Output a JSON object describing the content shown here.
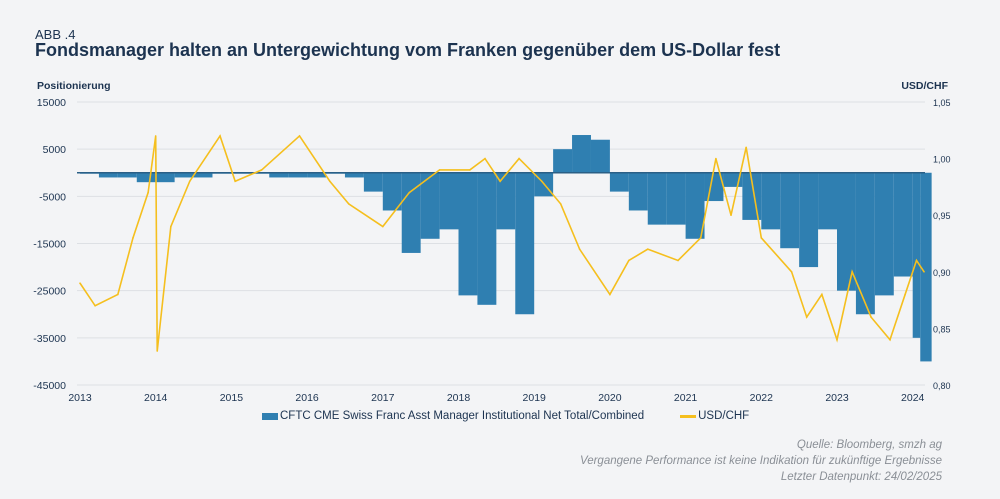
{
  "header": {
    "label": "ABB .4",
    "title": "Fondsmanager halten an Untergewichtung vom Franken gegenüber dem US-Dollar fest"
  },
  "chart_data": {
    "type": "bar+line",
    "ylabel_left": "Positionierung",
    "ylabel_right": "USD/CHF",
    "ylim_left": [
      -45000,
      15000
    ],
    "ylim_right": [
      0.8,
      1.05
    ],
    "xlim": [
      2013,
      2024.2
    ],
    "yticks_left": [
      "15000",
      "5000",
      "-5000",
      "-15000",
      "-25000",
      "-35000",
      "-45000"
    ],
    "yticks_left_values": [
      15000,
      5000,
      -5000,
      -15000,
      -25000,
      -35000,
      -45000
    ],
    "yticks_right": [
      "1,05",
      "1,00",
      "0,95",
      "0,90",
      "0,85",
      "0,80"
    ],
    "yticks_right_values": [
      1.05,
      1.0,
      0.95,
      0.9,
      0.85,
      0.8
    ],
    "xticks": [
      "2013",
      "2014",
      "2015",
      "2016",
      "2017",
      "2018",
      "2019",
      "2020",
      "2021",
      "2022",
      "2023",
      "2024"
    ],
    "grid": true,
    "legend_placement": "bottom",
    "series": [
      {
        "name": "CFTC CME Swiss Franc Asst Manager Institutional Net Total/Combined",
        "type": "bar",
        "axis": "left",
        "color": "#2f7fb1",
        "x": [
          2013,
          2013.25,
          2013.5,
          2013.75,
          2014,
          2014.25,
          2014.5,
          2014.75,
          2015,
          2015.25,
          2015.5,
          2015.75,
          2016,
          2016.25,
          2016.5,
          2016.75,
          2017,
          2017.25,
          2017.5,
          2017.75,
          2018,
          2018.25,
          2018.5,
          2018.75,
          2019,
          2019.25,
          2019.5,
          2019.75,
          2020,
          2020.25,
          2020.5,
          2020.75,
          2021,
          2021.25,
          2021.5,
          2021.75,
          2022,
          2022.25,
          2022.5,
          2022.75,
          2023,
          2023.25,
          2023.5,
          2023.75,
          2024,
          2024.1
        ],
        "values": [
          0,
          -1000,
          -1000,
          -2000,
          -2000,
          -1000,
          -1000,
          0,
          0,
          0,
          -1000,
          -1000,
          -1000,
          0,
          -1000,
          -4000,
          -8000,
          -17000,
          -14000,
          -12000,
          -26000,
          -28000,
          -12000,
          -30000,
          -5000,
          5000,
          8000,
          7000,
          -4000,
          -8000,
          -11000,
          -11000,
          -14000,
          -6000,
          -3000,
          -10000,
          -12000,
          -16000,
          -20000,
          -12000,
          -25000,
          -30000,
          -26000,
          -22000,
          -35000,
          -40000
        ]
      },
      {
        "name": "USD/CHF",
        "type": "line",
        "axis": "right",
        "color": "#f5bf1e",
        "x": [
          2013,
          2013.2,
          2013.5,
          2013.7,
          2013.9,
          2014.0,
          2014.02,
          2014.2,
          2014.45,
          2014.85,
          2015.05,
          2015.4,
          2015.9,
          2016.3,
          2016.55,
          2017.0,
          2017.35,
          2017.75,
          2018.15,
          2018.35,
          2018.55,
          2018.8,
          2019.1,
          2019.35,
          2019.6,
          2020.0,
          2020.25,
          2020.5,
          2020.9,
          2021.2,
          2021.4,
          2021.6,
          2021.8,
          2022.0,
          2022.4,
          2022.6,
          2022.8,
          2023.0,
          2023.2,
          2023.45,
          2023.7,
          2023.9,
          2024.05,
          2024.15
        ],
        "values": [
          0.89,
          0.87,
          0.88,
          0.93,
          0.97,
          1.02,
          0.83,
          0.94,
          0.98,
          1.02,
          0.98,
          0.99,
          1.02,
          0.98,
          0.96,
          0.94,
          0.97,
          0.99,
          0.99,
          1.0,
          0.98,
          1.0,
          0.98,
          0.96,
          0.92,
          0.88,
          0.91,
          0.92,
          0.91,
          0.93,
          1.0,
          0.95,
          1.01,
          0.93,
          0.9,
          0.86,
          0.88,
          0.84,
          0.9,
          0.86,
          0.84,
          0.88,
          0.91,
          0.9
        ]
      }
    ]
  },
  "footer": {
    "source": "Quelle: Bloomberg, smzh ag",
    "disclaimer": "Vergangene Performance ist keine Indikation für zukünftige Ergebnisse",
    "last": "Letzter Datenpunkt: 24/02/2025"
  }
}
